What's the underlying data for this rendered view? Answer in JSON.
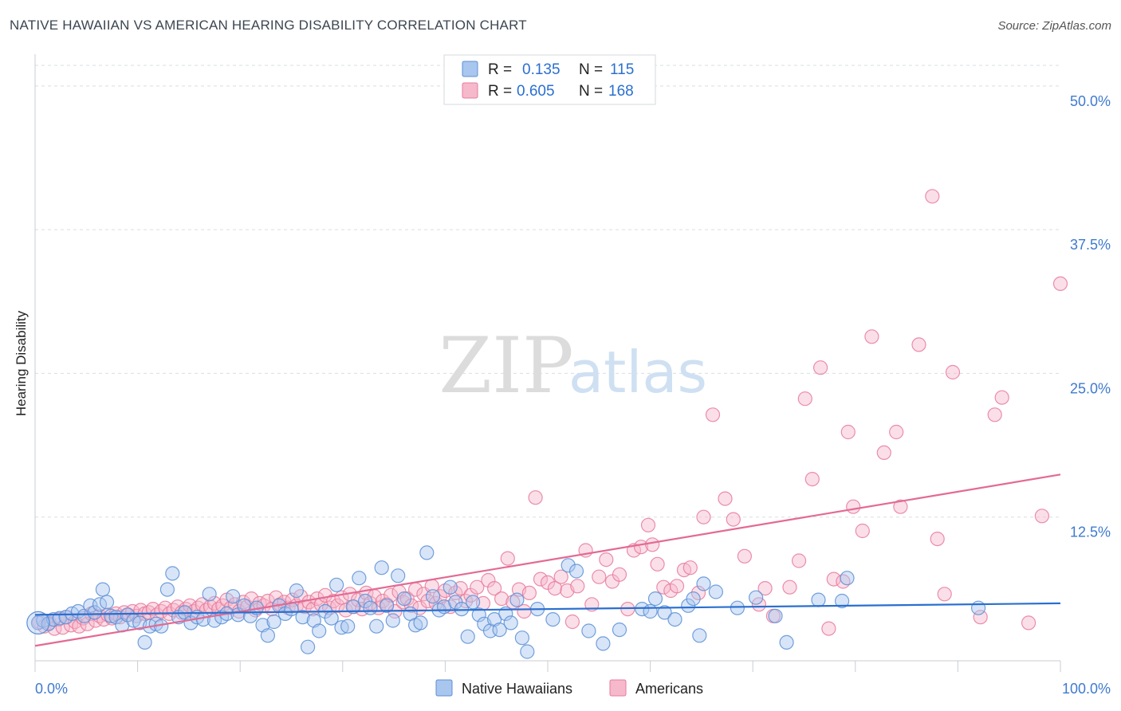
{
  "title": "NATIVE HAWAIIAN VS AMERICAN HEARING DISABILITY CORRELATION CHART",
  "source": "Source: ZipAtlas.com",
  "watermark": {
    "zip": "ZIP",
    "atlas": "atlas"
  },
  "colors": {
    "blue_fill": "#a9c6ef",
    "blue_stroke": "#5b8fd6",
    "blue_line": "#2a6fcf",
    "pink_fill": "#f6b8cb",
    "pink_stroke": "#e87a9c",
    "pink_line": "#e36a93",
    "tick_text": "#3f7ad0",
    "grid": "#d9dde3"
  },
  "legend": {
    "rows": [
      {
        "r_label": "R =",
        "r_value": "0.135",
        "n_label": "N =",
        "n_value": "115"
      },
      {
        "r_label": "R =",
        "r_value": "0.605",
        "n_label": "N =",
        "n_value": "168"
      }
    ]
  },
  "bottom_legend": [
    "Native Hawaiians",
    "Americans"
  ],
  "chart_data": {
    "type": "scatter",
    "title": "NATIVE HAWAIIAN VS AMERICAN HEARING DISABILITY CORRELATION CHART",
    "xlabel": "",
    "ylabel": "Hearing Disability",
    "xlim": [
      0,
      100
    ],
    "ylim": [
      0,
      52
    ],
    "x_tick_labels": [
      "0.0%",
      "100.0%"
    ],
    "y_ticks": [
      12.5,
      25.0,
      37.5,
      50.0
    ],
    "y_tick_labels": [
      "12.5%",
      "25.0%",
      "37.5%",
      "50.0%"
    ],
    "grid": true,
    "legend_position": "top-center",
    "series": [
      {
        "name": "Native Hawaiians",
        "r": 0.135,
        "n": 115,
        "trend": [
          [
            0,
            4.0
          ],
          [
            100,
            5.0
          ]
        ],
        "points": [
          [
            0.3,
            3.3
          ],
          [
            0.8,
            3.5
          ],
          [
            1.3,
            3.2
          ],
          [
            1.8,
            3.6
          ],
          [
            2.4,
            3.7
          ],
          [
            3.0,
            3.8
          ],
          [
            3.6,
            4.1
          ],
          [
            4.2,
            4.3
          ],
          [
            4.8,
            3.9
          ],
          [
            5.4,
            4.8
          ],
          [
            5.8,
            4.2
          ],
          [
            6.3,
            4.9
          ],
          [
            6.6,
            6.2
          ],
          [
            7.0,
            5.1
          ],
          [
            7.4,
            3.9
          ],
          [
            7.9,
            3.8
          ],
          [
            8.5,
            3.1
          ],
          [
            9.0,
            4.0
          ],
          [
            9.6,
            3.5
          ],
          [
            10.2,
            3.3
          ],
          [
            10.7,
            1.6
          ],
          [
            11.2,
            3.0
          ],
          [
            11.8,
            3.2
          ],
          [
            12.3,
            3.0
          ],
          [
            12.9,
            6.2
          ],
          [
            13.4,
            7.6
          ],
          [
            14.0,
            3.8
          ],
          [
            14.6,
            4.2
          ],
          [
            15.2,
            3.3
          ],
          [
            15.8,
            3.8
          ],
          [
            16.4,
            3.6
          ],
          [
            17.0,
            5.8
          ],
          [
            17.5,
            3.5
          ],
          [
            18.2,
            3.8
          ],
          [
            18.7,
            4.1
          ],
          [
            19.3,
            5.6
          ],
          [
            19.8,
            4.0
          ],
          [
            20.4,
            4.8
          ],
          [
            21.0,
            3.9
          ],
          [
            21.6,
            4.6
          ],
          [
            22.2,
            3.1
          ],
          [
            22.7,
            2.2
          ],
          [
            23.3,
            3.4
          ],
          [
            23.8,
            4.8
          ],
          [
            24.4,
            4.1
          ],
          [
            25.0,
            4.5
          ],
          [
            25.5,
            6.1
          ],
          [
            26.1,
            3.8
          ],
          [
            26.6,
            1.2
          ],
          [
            27.2,
            3.5
          ],
          [
            27.7,
            2.6
          ],
          [
            28.3,
            4.3
          ],
          [
            28.9,
            3.7
          ],
          [
            29.4,
            6.6
          ],
          [
            29.9,
            2.9
          ],
          [
            30.5,
            3.0
          ],
          [
            31.0,
            4.7
          ],
          [
            31.6,
            7.2
          ],
          [
            32.2,
            5.2
          ],
          [
            32.7,
            4.6
          ],
          [
            33.3,
            3.0
          ],
          [
            33.8,
            8.1
          ],
          [
            34.3,
            4.8
          ],
          [
            34.9,
            3.5
          ],
          [
            35.4,
            7.4
          ],
          [
            36.0,
            5.4
          ],
          [
            36.6,
            4.1
          ],
          [
            37.1,
            3.1
          ],
          [
            37.6,
            3.3
          ],
          [
            38.2,
            9.4
          ],
          [
            38.8,
            5.6
          ],
          [
            39.4,
            4.4
          ],
          [
            39.9,
            4.7
          ],
          [
            40.5,
            6.4
          ],
          [
            41.0,
            5.1
          ],
          [
            41.6,
            4.5
          ],
          [
            42.2,
            2.1
          ],
          [
            42.7,
            5.1
          ],
          [
            43.3,
            4.0
          ],
          [
            43.8,
            3.2
          ],
          [
            44.4,
            2.6
          ],
          [
            44.8,
            3.6
          ],
          [
            45.3,
            2.7
          ],
          [
            45.9,
            4.1
          ],
          [
            46.4,
            3.3
          ],
          [
            47.0,
            5.3
          ],
          [
            47.5,
            2.0
          ],
          [
            48.0,
            0.8
          ],
          [
            49.0,
            4.5
          ],
          [
            50.5,
            3.6
          ],
          [
            52.0,
            8.3
          ],
          [
            52.8,
            7.8
          ],
          [
            54.0,
            2.6
          ],
          [
            55.4,
            1.5
          ],
          [
            57.0,
            2.7
          ],
          [
            59.2,
            4.5
          ],
          [
            60.0,
            4.3
          ],
          [
            60.5,
            5.4
          ],
          [
            61.4,
            4.2
          ],
          [
            62.4,
            3.6
          ],
          [
            63.7,
            4.8
          ],
          [
            64.2,
            5.4
          ],
          [
            64.8,
            2.2
          ],
          [
            65.2,
            6.7
          ],
          [
            66.4,
            6.0
          ],
          [
            68.5,
            4.6
          ],
          [
            70.3,
            5.5
          ],
          [
            72.2,
            3.9
          ],
          [
            73.3,
            1.6
          ],
          [
            76.4,
            5.3
          ],
          [
            78.7,
            5.2
          ],
          [
            79.2,
            7.2
          ],
          [
            92.0,
            4.6
          ]
        ]
      },
      {
        "name": "Americans",
        "r": 0.605,
        "n": 168,
        "trend": [
          [
            0,
            1.3
          ],
          [
            100,
            16.2
          ]
        ],
        "points": [
          [
            0.4,
            3.4
          ],
          [
            0.9,
            3.0
          ],
          [
            1.4,
            3.3
          ],
          [
            1.9,
            2.8
          ],
          [
            2.3,
            3.6
          ],
          [
            2.7,
            2.9
          ],
          [
            3.1,
            3.8
          ],
          [
            3.5,
            3.1
          ],
          [
            3.9,
            3.4
          ],
          [
            4.3,
            3.0
          ],
          [
            4.7,
            3.7
          ],
          [
            5.1,
            3.2
          ],
          [
            5.5,
            4.1
          ],
          [
            5.9,
            3.5
          ],
          [
            6.3,
            3.9
          ],
          [
            6.7,
            3.6
          ],
          [
            7.1,
            4.0
          ],
          [
            7.5,
            3.7
          ],
          [
            7.9,
            4.1
          ],
          [
            8.3,
            3.8
          ],
          [
            8.7,
            4.2
          ],
          [
            9.1,
            4.0
          ],
          [
            9.5,
            4.3
          ],
          [
            9.9,
            3.9
          ],
          [
            10.3,
            4.4
          ],
          [
            10.7,
            4.1
          ],
          [
            11.1,
            4.2
          ],
          [
            11.5,
            4.5
          ],
          [
            11.9,
            4.0
          ],
          [
            12.3,
            4.3
          ],
          [
            12.7,
            4.6
          ],
          [
            13.1,
            4.1
          ],
          [
            13.5,
            4.4
          ],
          [
            13.9,
            4.7
          ],
          [
            14.3,
            4.2
          ],
          [
            14.7,
            4.5
          ],
          [
            15.1,
            4.8
          ],
          [
            15.5,
            4.3
          ],
          [
            15.9,
            4.6
          ],
          [
            16.3,
            4.9
          ],
          [
            16.7,
            4.4
          ],
          [
            17.1,
            4.7
          ],
          [
            17.5,
            5.0
          ],
          [
            17.9,
            4.5
          ],
          [
            18.3,
            4.8
          ],
          [
            18.7,
            5.3
          ],
          [
            19.1,
            4.6
          ],
          [
            19.5,
            4.9
          ],
          [
            19.9,
            4.3
          ],
          [
            20.3,
            5.1
          ],
          [
            20.7,
            4.7
          ],
          [
            21.1,
            5.4
          ],
          [
            21.5,
            4.4
          ],
          [
            21.9,
            5.0
          ],
          [
            22.3,
            4.8
          ],
          [
            22.7,
            5.2
          ],
          [
            23.1,
            4.5
          ],
          [
            23.5,
            5.5
          ],
          [
            23.9,
            4.9
          ],
          [
            24.3,
            5.1
          ],
          [
            24.7,
            4.6
          ],
          [
            25.1,
            5.3
          ],
          [
            25.5,
            4.8
          ],
          [
            25.9,
            5.6
          ],
          [
            26.3,
            4.7
          ],
          [
            26.7,
            5.1
          ],
          [
            27.1,
            4.5
          ],
          [
            27.5,
            5.4
          ],
          [
            27.9,
            4.9
          ],
          [
            28.3,
            5.7
          ],
          [
            28.7,
            4.6
          ],
          [
            29.1,
            5.2
          ],
          [
            29.5,
            4.8
          ],
          [
            29.9,
            5.5
          ],
          [
            30.3,
            4.4
          ],
          [
            30.7,
            5.8
          ],
          [
            31.1,
            4.7
          ],
          [
            31.5,
            5.3
          ],
          [
            31.9,
            4.5
          ],
          [
            32.3,
            5.9
          ],
          [
            32.7,
            5.0
          ],
          [
            33.1,
            5.6
          ],
          [
            33.5,
            4.6
          ],
          [
            33.9,
            5.2
          ],
          [
            34.3,
            4.9
          ],
          [
            34.7,
            5.7
          ],
          [
            35.1,
            4.3
          ],
          [
            35.5,
            6.0
          ],
          [
            35.9,
            5.1
          ],
          [
            36.3,
            5.4
          ],
          [
            36.7,
            4.8
          ],
          [
            37.1,
            6.2
          ],
          [
            37.5,
            4.6
          ],
          [
            37.9,
            5.8
          ],
          [
            38.3,
            5.2
          ],
          [
            38.7,
            6.5
          ],
          [
            39.1,
            5.0
          ],
          [
            39.5,
            5.6
          ],
          [
            40.0,
            6.1
          ],
          [
            40.5,
            4.7
          ],
          [
            41.0,
            5.9
          ],
          [
            41.5,
            6.3
          ],
          [
            42.0,
            5.2
          ],
          [
            42.5,
            5.7
          ],
          [
            43.1,
            6.4
          ],
          [
            43.7,
            5.0
          ],
          [
            44.2,
            7.0
          ],
          [
            44.8,
            6.3
          ],
          [
            45.5,
            5.4
          ],
          [
            46.1,
            8.9
          ],
          [
            46.6,
            5.1
          ],
          [
            47.2,
            6.2
          ],
          [
            47.7,
            4.3
          ],
          [
            48.2,
            5.9
          ],
          [
            48.8,
            14.2
          ],
          [
            49.3,
            7.1
          ],
          [
            50.0,
            6.8
          ],
          [
            50.7,
            6.3
          ],
          [
            51.3,
            7.3
          ],
          [
            51.9,
            6.1
          ],
          [
            52.4,
            3.4
          ],
          [
            52.9,
            6.5
          ],
          [
            53.7,
            9.6
          ],
          [
            54.3,
            4.9
          ],
          [
            55.0,
            7.3
          ],
          [
            55.7,
            8.8
          ],
          [
            56.3,
            6.9
          ],
          [
            57.0,
            7.5
          ],
          [
            57.8,
            4.5
          ],
          [
            58.4,
            9.6
          ],
          [
            59.1,
            9.9
          ],
          [
            59.8,
            11.8
          ],
          [
            60.2,
            10.1
          ],
          [
            60.7,
            8.4
          ],
          [
            61.3,
            6.4
          ],
          [
            62.0,
            6.1
          ],
          [
            62.6,
            6.5
          ],
          [
            63.3,
            7.9
          ],
          [
            63.9,
            8.1
          ],
          [
            64.7,
            5.9
          ],
          [
            65.2,
            12.5
          ],
          [
            66.1,
            21.4
          ],
          [
            67.3,
            14.1
          ],
          [
            68.1,
            12.3
          ],
          [
            69.2,
            9.1
          ],
          [
            70.6,
            4.9
          ],
          [
            71.2,
            6.3
          ],
          [
            72.0,
            3.9
          ],
          [
            73.6,
            6.4
          ],
          [
            74.5,
            8.7
          ],
          [
            75.1,
            22.8
          ],
          [
            75.8,
            15.8
          ],
          [
            76.6,
            25.5
          ],
          [
            77.4,
            2.8
          ],
          [
            77.9,
            7.1
          ],
          [
            78.8,
            6.9
          ],
          [
            79.3,
            19.9
          ],
          [
            79.8,
            13.4
          ],
          [
            80.7,
            11.3
          ],
          [
            81.6,
            28.2
          ],
          [
            82.8,
            18.1
          ],
          [
            84.0,
            19.9
          ],
          [
            84.4,
            13.4
          ],
          [
            86.2,
            27.5
          ],
          [
            87.5,
            40.4
          ],
          [
            88.0,
            10.6
          ],
          [
            88.7,
            5.8
          ],
          [
            89.5,
            25.1
          ],
          [
            92.2,
            3.8
          ],
          [
            93.6,
            21.4
          ],
          [
            94.3,
            22.9
          ],
          [
            96.9,
            3.3
          ],
          [
            98.2,
            12.6
          ],
          [
            100.0,
            32.8
          ]
        ]
      }
    ]
  }
}
